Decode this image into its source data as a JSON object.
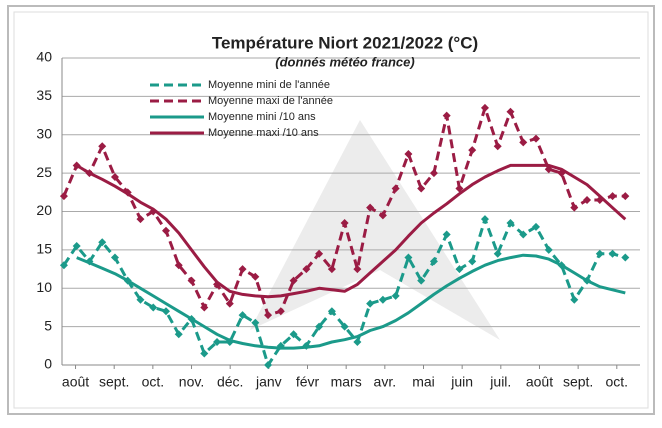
{
  "chart_data": {
    "type": "line",
    "title": "Température Niort 2021/2022 (°C)",
    "subtitle": "(donnés météo france)",
    "x": [
      -0.3,
      0.03,
      0.36,
      0.69,
      1.02,
      1.35,
      1.68,
      2.01,
      2.34,
      2.67,
      3.0,
      3.33,
      3.66,
      3.99,
      4.32,
      4.65,
      4.98,
      5.31,
      5.64,
      5.97,
      6.3,
      6.63,
      6.96,
      7.29,
      7.62,
      7.95,
      8.28,
      8.61,
      8.94,
      9.27,
      9.6,
      9.93,
      10.26,
      10.59,
      10.92,
      11.25,
      11.58,
      11.91,
      12.24,
      12.57,
      12.9,
      13.23,
      13.56,
      13.89,
      14.22
    ],
    "xlim": [
      -0.35,
      14.6
    ],
    "xticks": [
      {
        "value": 0,
        "label": "août"
      },
      {
        "value": 1,
        "label": "sept."
      },
      {
        "value": 2,
        "label": "oct."
      },
      {
        "value": 3,
        "label": "nov."
      },
      {
        "value": 4,
        "label": "déc."
      },
      {
        "value": 5,
        "label": "janv"
      },
      {
        "value": 6,
        "label": "févr"
      },
      {
        "value": 7,
        "label": "mars"
      },
      {
        "value": 8,
        "label": "avr."
      },
      {
        "value": 9,
        "label": "mai"
      },
      {
        "value": 10,
        "label": "juin"
      },
      {
        "value": 11,
        "label": "juil."
      },
      {
        "value": 12,
        "label": "août"
      },
      {
        "value": 13,
        "label": "sept."
      },
      {
        "value": 14,
        "label": "oct."
      }
    ],
    "ylim": [
      0,
      40
    ],
    "yticks": [
      0,
      5,
      10,
      15,
      20,
      25,
      30,
      35,
      40
    ],
    "grid": true,
    "legend": "top-left",
    "series": [
      {
        "name": "Moyenne mini de l'année",
        "color": "#1b9a8a",
        "dashed": true,
        "marker": "diamond",
        "values": [
          13,
          15.5,
          13.5,
          16,
          14,
          11,
          8.5,
          7.5,
          7,
          4,
          6,
          1.5,
          3,
          3,
          6.5,
          5.5,
          0,
          2.5,
          4,
          2.5,
          5,
          7,
          5,
          3,
          8,
          8.5,
          9,
          14,
          11,
          13.5,
          17,
          12.5,
          13.5,
          19,
          14.5,
          18.5,
          17,
          18,
          15,
          13,
          8.5,
          11,
          14.5,
          14.5,
          14
        ]
      },
      {
        "name": "Moyenne maxi de l'année",
        "color": "#9b1c44",
        "dashed": true,
        "marker": "diamond",
        "values": [
          22,
          26,
          25,
          28.5,
          24.5,
          22.5,
          19,
          20,
          17.5,
          13,
          11,
          7.5,
          10.5,
          8,
          12.5,
          11.5,
          6.5,
          7,
          11,
          12.5,
          14.5,
          12.5,
          18.5,
          12.5,
          20.5,
          19.5,
          23,
          27.5,
          23,
          25,
          32.5,
          23,
          28,
          33.5,
          28.5,
          33,
          29,
          29.5,
          25.5,
          25,
          20.5,
          21.5,
          21.5,
          22,
          22
        ]
      },
      {
        "name": "Moyenne mini /10 ans",
        "color": "#1b9a8a",
        "dashed": false,
        "values": [
          null,
          14,
          13.3,
          12.6,
          11.9,
          11,
          10,
          9,
          8,
          7,
          6,
          5,
          4,
          3.2,
          2.8,
          2.5,
          2.3,
          2.2,
          2.2,
          2.3,
          2.5,
          3,
          3.3,
          3.7,
          4.5,
          5,
          5.8,
          6.8,
          8,
          9.2,
          10.3,
          11.3,
          12.2,
          13,
          13.6,
          14,
          14.3,
          14.2,
          13.8,
          13,
          12,
          11,
          10.2,
          9.8,
          9.4
        ]
      },
      {
        "name": "Moyenne maxi /10 ans",
        "color": "#9b1c44",
        "dashed": false,
        "values": [
          null,
          26,
          25,
          24.2,
          23.3,
          22.3,
          21.2,
          20.3,
          19,
          17.2,
          15,
          12.8,
          10.8,
          9.6,
          9.2,
          9,
          8.9,
          9,
          9.3,
          9.6,
          10,
          9.8,
          9.6,
          10.5,
          12,
          13.5,
          15,
          16.8,
          18.5,
          19.8,
          21,
          22.3,
          23.5,
          24.5,
          25.3,
          26,
          26,
          26,
          26,
          25.5,
          24.5,
          23.5,
          22,
          20.5,
          19
        ]
      }
    ]
  }
}
